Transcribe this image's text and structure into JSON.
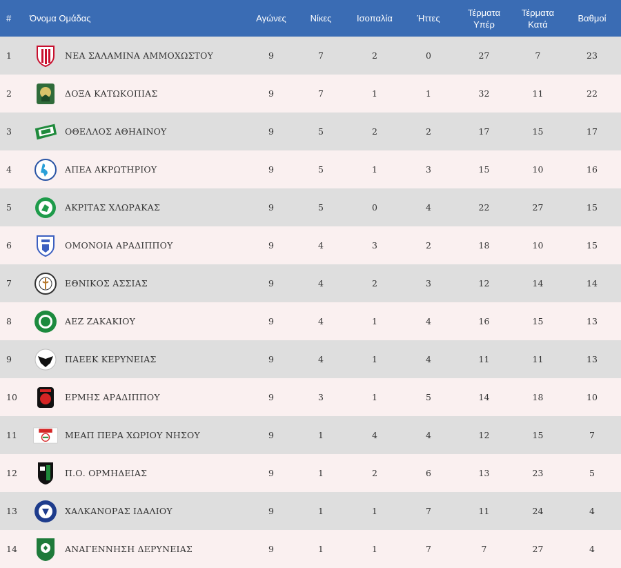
{
  "headers": {
    "rank": "#",
    "team": "Όνομα Ομάδας",
    "played": "Αγώνες",
    "wins": "Νίκες",
    "draws": "Ισοπαλία",
    "losses": "Ήττες",
    "gf_line1": "Τέρματα",
    "gf_line2": "Υπέρ",
    "ga_line1": "Τέρματα",
    "ga_line2": "Κατά",
    "points": "Βαθμοί"
  },
  "rows": [
    {
      "rank": "1",
      "team": "ΝΕΑ ΣΑΛΑΜΙΝΑ ΑΜΜΟΧΩΣΤΟΥ",
      "played": "9",
      "wins": "7",
      "draws": "2",
      "losses": "0",
      "gf": "27",
      "ga": "7",
      "points": "23",
      "logo": "nea-salamina-logo"
    },
    {
      "rank": "2",
      "team": "ΔΟΞΑ ΚΑΤΩΚΟΠΙΑΣ",
      "played": "9",
      "wins": "7",
      "draws": "1",
      "losses": "1",
      "gf": "32",
      "ga": "11",
      "points": "22",
      "logo": "doxa-katokopias-logo"
    },
    {
      "rank": "3",
      "team": "ΟΘΕΛΛΟΣ ΑΘΗΑΙΝΟΥ",
      "played": "9",
      "wins": "5",
      "draws": "2",
      "losses": "2",
      "gf": "17",
      "ga": "15",
      "points": "17",
      "logo": "othellos-athienou-logo"
    },
    {
      "rank": "4",
      "team": "ΑΠΕΑ ΑΚΡΩΤΗΡΙΟΥ",
      "played": "9",
      "wins": "5",
      "draws": "1",
      "losses": "3",
      "gf": "15",
      "ga": "10",
      "points": "16",
      "logo": "apea-akrotiriou-logo"
    },
    {
      "rank": "5",
      "team": "ΑΚΡΙΤΑΣ ΧΛΩΡΑΚΑΣ",
      "played": "9",
      "wins": "5",
      "draws": "0",
      "losses": "4",
      "gf": "22",
      "ga": "27",
      "points": "15",
      "logo": "akritas-chlorakas-logo"
    },
    {
      "rank": "6",
      "team": "ΟΜΟΝΟΙΑ ΑΡΑΔΙΠΠΟΥ",
      "played": "9",
      "wins": "4",
      "draws": "3",
      "losses": "2",
      "gf": "18",
      "ga": "10",
      "points": "15",
      "logo": "omonoia-aradippou-logo"
    },
    {
      "rank": "7",
      "team": "ΕΘΝΙΚΟΣ ΑΣΣΙΑΣ",
      "played": "9",
      "wins": "4",
      "draws": "2",
      "losses": "3",
      "gf": "12",
      "ga": "14",
      "points": "14",
      "logo": "ethnikos-assias-logo"
    },
    {
      "rank": "8",
      "team": "ΑΕΖ ΖΑΚΑΚΙΟΥ",
      "played": "9",
      "wins": "4",
      "draws": "1",
      "losses": "4",
      "gf": "16",
      "ga": "15",
      "points": "13",
      "logo": "aez-zakakiou-logo"
    },
    {
      "rank": "9",
      "team": "ΠΑΕΕΚ ΚΕΡΥΝΕΙΑΣ",
      "played": "9",
      "wins": "4",
      "draws": "1",
      "losses": "4",
      "gf": "11",
      "ga": "11",
      "points": "13",
      "logo": "paeek-kerynias-logo"
    },
    {
      "rank": "10",
      "team": "ΕΡΜΗΣ ΑΡΑΔΙΠΠΟΥ",
      "played": "9",
      "wins": "3",
      "draws": "1",
      "losses": "5",
      "gf": "14",
      "ga": "18",
      "points": "10",
      "logo": "ermis-aradippou-logo"
    },
    {
      "rank": "11",
      "team": "ΜΕΑΠ ΠΕΡΑ ΧΩΡΙΟΥ ΝΗΣΟΥ",
      "played": "9",
      "wins": "1",
      "draws": "4",
      "losses": "4",
      "gf": "12",
      "ga": "15",
      "points": "7",
      "logo": "meap-pera-chorio-logo"
    },
    {
      "rank": "12",
      "team": "Π.Ο. ΟΡΜΗΔΕΙΑΣ",
      "played": "9",
      "wins": "1",
      "draws": "2",
      "losses": "6",
      "gf": "13",
      "ga": "23",
      "points": "5",
      "logo": "po-ormideias-logo"
    },
    {
      "rank": "13",
      "team": "ΧΑΛΚΑΝΟΡΑΣ ΙΔΑΛΙΟΥ",
      "played": "9",
      "wins": "1",
      "draws": "1",
      "losses": "7",
      "gf": "11",
      "ga": "24",
      "points": "4",
      "logo": "chalkanoras-idaliou-logo"
    },
    {
      "rank": "14",
      "team": "ΑΝΑΓΕΝΝΗΣΗ ΔΕΡΥΝΕΙΑΣ",
      "played": "9",
      "wins": "1",
      "draws": "1",
      "losses": "7",
      "gf": "7",
      "ga": "27",
      "points": "4",
      "logo": "anagennisi-deryneias-logo"
    }
  ],
  "colors": {
    "header_bg": "#3a6cb4",
    "row_odd": "#dedede",
    "row_even": "#faf0f0"
  }
}
